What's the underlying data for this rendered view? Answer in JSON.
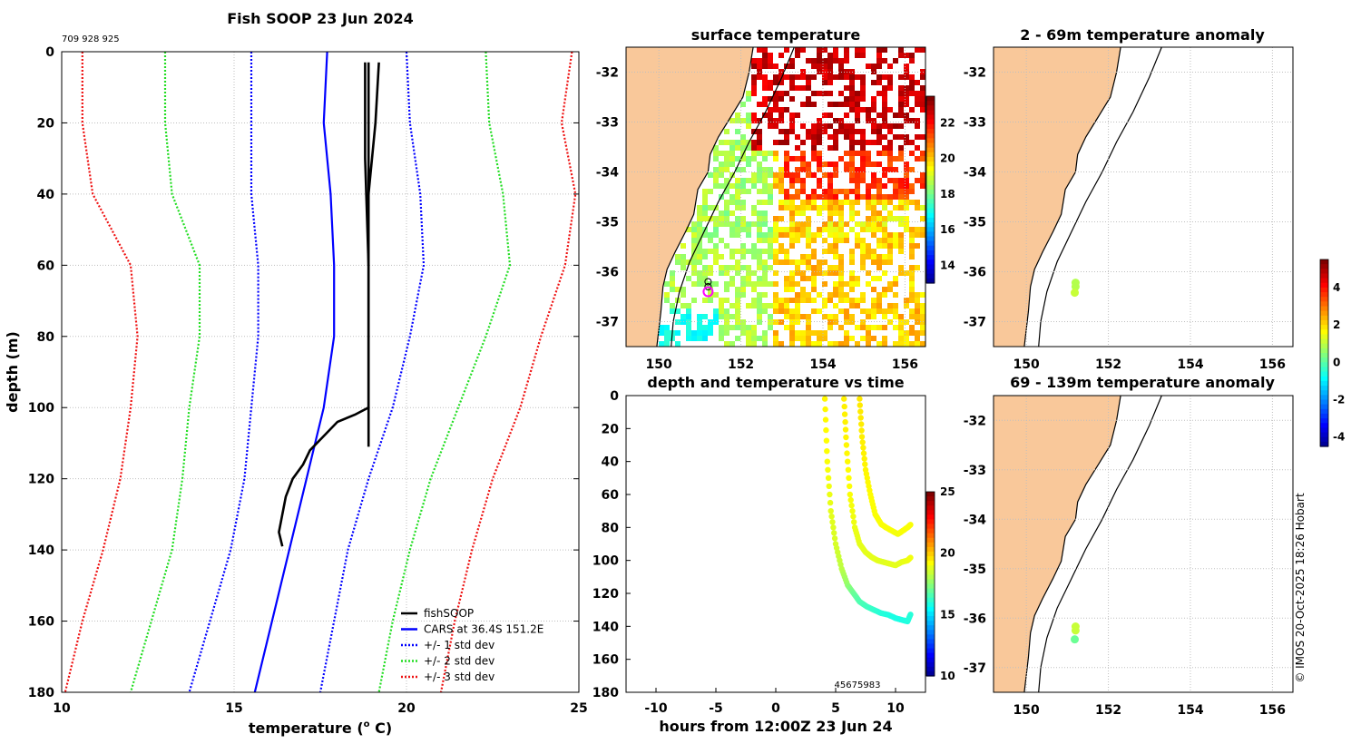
{
  "page": {
    "title": "Fish SOOP 23 Jun 2024",
    "id_label": "709 928 925",
    "copyright": "© IMOS 20-Oct-2025 18:26 Hobart"
  },
  "colors": {
    "land": "#f9c89a",
    "obs": "#000000",
    "cars": "#0000ff",
    "std1": "#0000ff",
    "std2": "#22dd22",
    "std3": "#ee1111",
    "grid": "#bfbfbf"
  },
  "chart_data": [
    {
      "id": "profile",
      "type": "line",
      "title": "Fish SOOP 23 Jun 2024",
      "xlabel": "temperature (o C)",
      "ylabel": "depth (m)",
      "xlim": [
        10,
        25
      ],
      "ylim": [
        0,
        180
      ],
      "y_reversed": true,
      "xticks": [
        10,
        15,
        20,
        25
      ],
      "yticks": [
        0,
        20,
        40,
        60,
        80,
        100,
        120,
        140,
        160,
        180
      ],
      "legend_position": "bottom-right",
      "legend": [
        "fishSOOP",
        "CARS at 36.4S 151.2E",
        "+/- 1 std dev",
        "+/- 2 std dev",
        "+/- 3 std dev"
      ],
      "cars_depth": [
        0,
        20,
        40,
        60,
        80,
        100,
        120,
        140,
        160,
        180
      ],
      "cars_temp": [
        17.7,
        17.6,
        17.8,
        17.9,
        17.9,
        17.6,
        17.1,
        16.6,
        16.1,
        15.6
      ],
      "std_plus": [
        [
          20.0,
          20.1,
          20.4,
          20.5,
          20.1,
          19.6,
          18.9,
          18.3,
          17.9,
          17.5
        ],
        [
          22.3,
          22.4,
          22.8,
          23.0,
          22.3,
          21.5,
          20.7,
          20.1,
          19.6,
          19.2
        ],
        [
          24.8,
          24.5,
          24.9,
          24.6,
          23.9,
          23.3,
          22.5,
          21.9,
          21.4,
          21.0
        ]
      ],
      "std_minus": [
        [
          15.5,
          15.5,
          15.5,
          15.7,
          15.7,
          15.5,
          15.3,
          14.9,
          14.3,
          13.7
        ],
        [
          13.0,
          13.0,
          13.2,
          14.0,
          14.0,
          13.7,
          13.5,
          13.2,
          12.6,
          12.0
        ],
        [
          10.6,
          10.6,
          10.9,
          12.0,
          12.2,
          12.0,
          11.7,
          11.2,
          10.6,
          10.1
        ]
      ],
      "casts": [
        {
          "depth": [
            3,
            30,
            60,
            90,
            100,
            111
          ],
          "temp": [
            18.8,
            18.8,
            18.9,
            18.9,
            18.9,
            18.9
          ]
        },
        {
          "depth": [
            3,
            40,
            80,
            100,
            102,
            104,
            108,
            112,
            116,
            120,
            125,
            130,
            135,
            139
          ],
          "temp": [
            18.9,
            18.9,
            18.9,
            18.9,
            18.5,
            18.0,
            17.6,
            17.2,
            17.0,
            16.7,
            16.5,
            16.4,
            16.3,
            16.4
          ]
        },
        {
          "depth": [
            3,
            20,
            30,
            40,
            50,
            60
          ],
          "temp": [
            19.2,
            19.1,
            19.0,
            18.9,
            18.9,
            18.9
          ]
        }
      ]
    },
    {
      "id": "sst",
      "type": "heatmap",
      "title": "surface temperature",
      "xlim": [
        149.2,
        156.5
      ],
      "ylim": [
        -37.5,
        -31.5
      ],
      "xticks": [
        150,
        152,
        154,
        156
      ],
      "yticks": [
        -32,
        -33,
        -34,
        -35,
        -36,
        -37
      ],
      "colorbar": {
        "ticks": [
          14,
          16,
          18,
          20,
          22
        ],
        "range": [
          13,
          23.5
        ]
      },
      "station": {
        "lon": 151.2,
        "lat": -36.4
      }
    },
    {
      "id": "depth_time",
      "type": "scatter",
      "title": "depth and temperature vs time",
      "xlabel": "hours from 12:00Z 23 Jun 24",
      "xlim": [
        -12.5,
        12.5
      ],
      "ylim": [
        0,
        180
      ],
      "y_reversed": true,
      "xticks": [
        -10,
        -5,
        0,
        5,
        10
      ],
      "yticks": [
        0,
        20,
        40,
        60,
        80,
        100,
        120,
        140,
        160,
        180
      ],
      "colorbar": {
        "ticks": [
          10,
          15,
          20,
          25
        ],
        "range": [
          10,
          25
        ]
      },
      "annotation": "45675983",
      "tracks": [
        {
          "hours": [
            4.1,
            4.3,
            4.6,
            5.0,
            5.5,
            6.0,
            6.5,
            7.0,
            7.6,
            8.2,
            8.8,
            9.4,
            10.0,
            10.5,
            11.0,
            11.3
          ],
          "depth": [
            2,
            40,
            70,
            90,
            105,
            115,
            120,
            125,
            128,
            130,
            132,
            133,
            135,
            136,
            137,
            132
          ],
          "temp": [
            19.5,
            19.3,
            19.0,
            18.8,
            18.4,
            17.8,
            17.2,
            16.8,
            16.6,
            16.4,
            16.2,
            16.1,
            16.0,
            16.0,
            16.1,
            16.2
          ]
        },
        {
          "hours": [
            5.7,
            5.9,
            6.2,
            6.6,
            7.0,
            7.5,
            8.0,
            8.5,
            9.0,
            9.5,
            10.0,
            10.5,
            11.0,
            11.3
          ],
          "depth": [
            2,
            30,
            60,
            80,
            90,
            95,
            98,
            100,
            101,
            102,
            103,
            101,
            100,
            98
          ],
          "temp": [
            19.6,
            19.5,
            19.3,
            19.1,
            19.0,
            19.0,
            19.0,
            19.0,
            18.9,
            19.0,
            19.0,
            19.0,
            19.1,
            19.2
          ]
        },
        {
          "hours": [
            7.0,
            7.2,
            7.5,
            7.9,
            8.3,
            8.8,
            9.2,
            9.7,
            10.2,
            10.6,
            11.0,
            11.3
          ],
          "depth": [
            2,
            25,
            45,
            60,
            72,
            78,
            80,
            82,
            84,
            82,
            80,
            78
          ],
          "temp": [
            19.7,
            19.6,
            19.5,
            19.4,
            19.3,
            19.3,
            19.3,
            19.3,
            19.2,
            19.3,
            19.3,
            19.3
          ]
        }
      ]
    },
    {
      "id": "anom_shallow",
      "type": "scatter",
      "title": "2 - 69m temperature anomaly",
      "xlim": [
        149.2,
        156.5
      ],
      "ylim": [
        -37.5,
        -31.5
      ],
      "xticks": [
        150,
        152,
        154,
        156
      ],
      "yticks": [
        -32,
        -33,
        -34,
        -35,
        -36,
        -37
      ],
      "colorbar": {
        "ticks": [
          4,
          2,
          0,
          -2,
          -4
        ],
        "range": [
          -4.5,
          5.5
        ]
      },
      "points": [
        {
          "lon": 151.2,
          "lat": -36.22,
          "anom": 1.0
        },
        {
          "lon": 151.2,
          "lat": -36.3,
          "anom": 1.0
        },
        {
          "lon": 151.18,
          "lat": -36.42,
          "anom": 1.2
        }
      ]
    },
    {
      "id": "anom_deep",
      "type": "scatter",
      "title": "69 - 139m temperature anomaly",
      "xlim": [
        149.2,
        156.5
      ],
      "ylim": [
        -37.5,
        -31.5
      ],
      "xticks": [
        150,
        152,
        154,
        156
      ],
      "yticks": [
        -32,
        -33,
        -34,
        -35,
        -36,
        -37
      ],
      "points": [
        {
          "lon": 151.2,
          "lat": -36.17,
          "anom": 1.2
        },
        {
          "lon": 151.2,
          "lat": -36.25,
          "anom": 1.2
        },
        {
          "lon": 151.18,
          "lat": -36.43,
          "anom": 0.3
        }
      ]
    }
  ]
}
